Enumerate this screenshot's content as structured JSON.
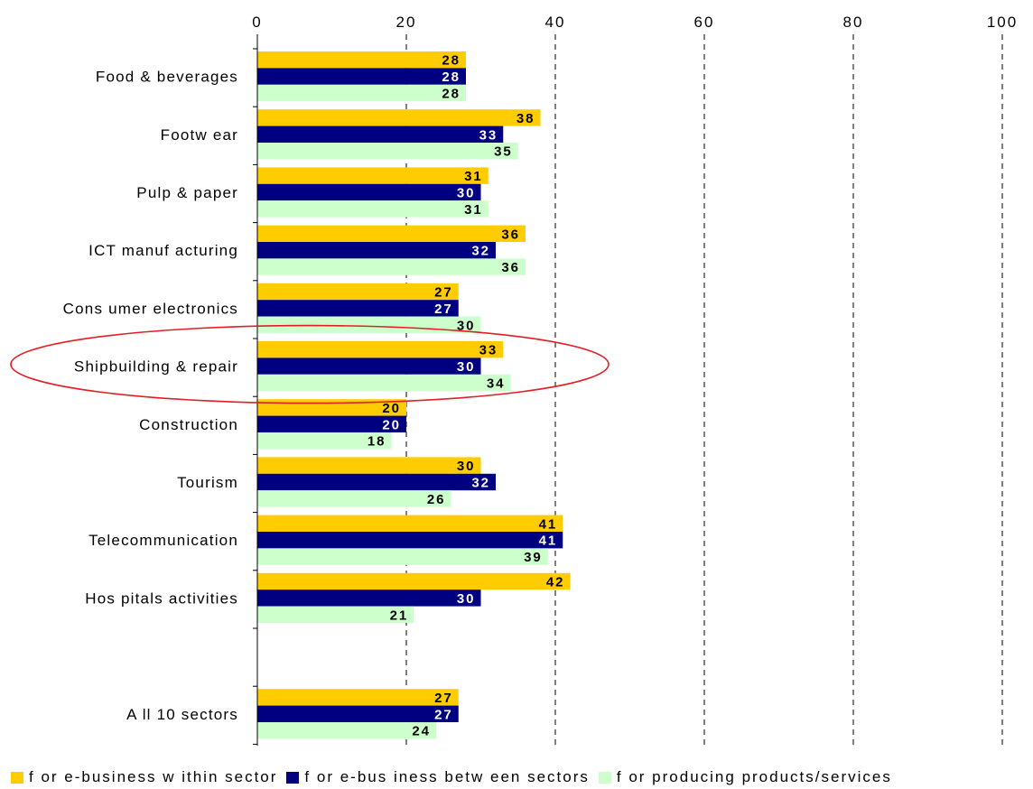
{
  "chart_data": {
    "type": "bar",
    "orientation": "horizontal",
    "categories": [
      "Food & beverages",
      "Footw ear",
      "Pulp & paper",
      "ICT manuf acturing",
      "Cons umer electronics",
      "Shipbuilding & repair",
      "Construction",
      "Tourism",
      "Telecommunication",
      "Hos pitals activities",
      "",
      "A ll 10 sectors"
    ],
    "series": [
      {
        "name": "f or e-business w ithin sector",
        "color": "#FFCC00",
        "values": [
          28,
          38,
          31,
          36,
          27,
          33,
          20,
          30,
          41,
          42,
          null,
          27
        ]
      },
      {
        "name": "f or e-bus iness betw een sectors",
        "color": "#000080",
        "values": [
          28,
          33,
          30,
          32,
          27,
          30,
          20,
          32,
          41,
          30,
          null,
          27
        ]
      },
      {
        "name": "f or producing products/services",
        "color": "#CCFFCC",
        "values": [
          28,
          35,
          31,
          36,
          30,
          34,
          18,
          26,
          39,
          21,
          null,
          24
        ]
      }
    ],
    "xlim": [
      0,
      100
    ],
    "x_ticks": [
      "0",
      "20",
      "40",
      "60",
      "80",
      "100"
    ],
    "tick_values": [
      0,
      20,
      40,
      60,
      80,
      100
    ],
    "grid": "vertical dashed",
    "axis_position": "top",
    "legend": "bottom",
    "highlighted_category": "Shipbuilding & repair",
    "highlight_color": "#E31E24",
    "value_label_colors": [
      "#000000",
      "#FFFFFF",
      "#000000"
    ]
  }
}
